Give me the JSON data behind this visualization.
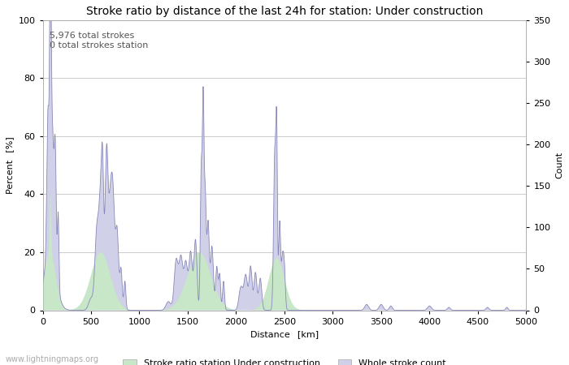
{
  "title": "Stroke ratio by distance of the last 24h for station: Under construction",
  "xlabel": "Distance  [km]",
  "ylabel_left": "Percent  [%]",
  "ylabel_right": "Count",
  "annotation_line1": "5,976 total strokes",
  "annotation_line2": "0 total strokes station",
  "watermark": "www.lightningmaps.org",
  "xlim": [
    0,
    5000
  ],
  "ylim_left": [
    0,
    100
  ],
  "ylim_right": [
    0,
    350
  ],
  "xticks": [
    0,
    500,
    1000,
    1500,
    2000,
    2500,
    3000,
    3500,
    4000,
    4500,
    5000
  ],
  "yticks_left": [
    0,
    20,
    40,
    60,
    80,
    100
  ],
  "yticks_right": [
    0,
    50,
    100,
    150,
    200,
    250,
    300,
    350
  ],
  "legend_label_green": "Stroke ratio station Under construction",
  "legend_label_blue": "Whole stroke count",
  "color_green_fill": "#c8e6c8",
  "color_green_edge": "#c8e6c8",
  "color_blue_fill": "#d0d0e8",
  "color_blue_edge": "#d0d0e8",
  "color_line": "#8888bb",
  "background_color": "#ffffff",
  "grid_color": "#cccccc",
  "title_fontsize": 10,
  "label_fontsize": 8,
  "tick_fontsize": 8,
  "annotation_fontsize": 8
}
